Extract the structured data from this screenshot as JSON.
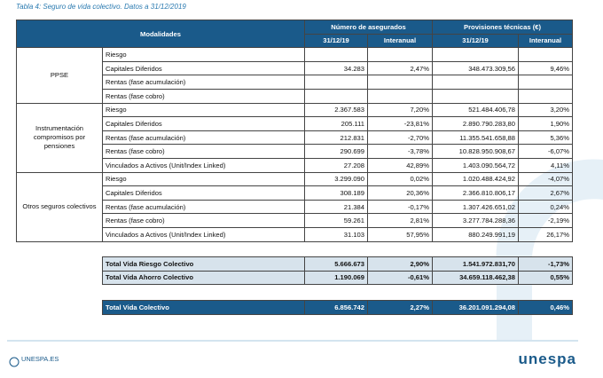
{
  "caption": "Tabla 4: Seguro de vida colectivo. Datos a 31/12/2019",
  "header": {
    "modalidades": "Modalidades",
    "asegurados": "Número de asegurados",
    "provisiones": "Provisiones técnicas (€)",
    "sub": [
      "31/12/19",
      "Interanual",
      "31/12/19",
      "Interanual"
    ]
  },
  "groups": [
    {
      "name": "PPSE",
      "rows": [
        {
          "label": "Riesgo"
        },
        {
          "label": "Capitales Diferidos",
          "values": [
            "34.283",
            "2,47%",
            "348.473.309,56",
            "9,46%"
          ]
        },
        {
          "label": "Rentas (fase acumulación)"
        },
        {
          "label": "Rentas (fase cobro)"
        }
      ]
    },
    {
      "name": "Instrumentación compromisos por pensiones",
      "rows": [
        {
          "label": "Riesgo",
          "values": [
            "2.367.583",
            "7,20%",
            "521.484.406,78",
            "3,20%"
          ]
        },
        {
          "label": "Capitales Diferidos",
          "values": [
            "205.111",
            "-23,81%",
            "2.890.790.283,80",
            "1,90%"
          ]
        },
        {
          "label": "Rentas (fase acumulación)",
          "values": [
            "212.831",
            "-2,70%",
            "11.355.541.658,88",
            "5,36%"
          ]
        },
        {
          "label": "Rentas (fase cobro)",
          "values": [
            "290.699",
            "-3,78%",
            "10.828.950.908,67",
            "-6,07%"
          ]
        },
        {
          "label": "Vinculados a Activos (Unit/Index Linked)",
          "values": [
            "27.208",
            "42,89%",
            "1.403.090.564,72",
            "4,11%"
          ]
        }
      ]
    },
    {
      "name": "Otros seguros colectivos",
      "rows": [
        {
          "label": "Riesgo",
          "values": [
            "3.299.090",
            "0,02%",
            "1.020.488.424,92",
            "-4,07%"
          ]
        },
        {
          "label": "Capitales Diferidos",
          "values": [
            "308.189",
            "20,36%",
            "2.366.810.806,17",
            "2,67%"
          ]
        },
        {
          "label": "Rentas (fase acumulación)",
          "values": [
            "21.384",
            "-0,17%",
            "1.307.426.651,02",
            "0,24%"
          ]
        },
        {
          "label": "Rentas (fase cobro)",
          "values": [
            "59.261",
            "2,81%",
            "3.277.784.288,36",
            "-2,19%"
          ]
        },
        {
          "label": "Vinculados a Activos (Unit/Index Linked)",
          "values": [
            "31.103",
            "57,95%",
            "880.249.991,19",
            "26,17%"
          ]
        }
      ]
    }
  ],
  "totals": [
    {
      "label": "Total Vida Riesgo Colectivo",
      "values": [
        "5.666.673",
        "2,90%",
        "1.541.972.831,70",
        "-1,73%"
      ]
    },
    {
      "label": "Total Vida Ahorro Colectivo",
      "values": [
        "1.190.069",
        "-0,61%",
        "34.659.118.462,38",
        "0,55%"
      ]
    }
  ],
  "grand_total": {
    "label": "Total Vida Colectivo",
    "values": [
      "6.856.742",
      "2,27%",
      "36.201.091.294,08",
      "0,46%"
    ]
  },
  "footer": {
    "site": "UNESPA.ES",
    "logo": "unespa"
  }
}
